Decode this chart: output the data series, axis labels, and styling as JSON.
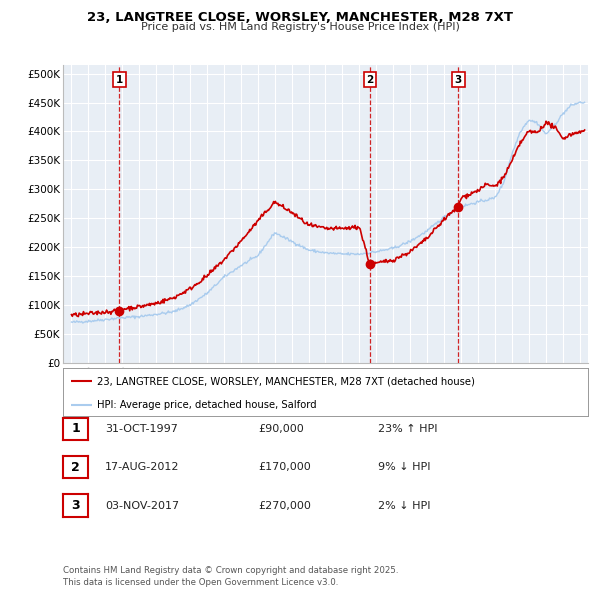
{
  "title1": "23, LANGTREE CLOSE, WORSLEY, MANCHESTER, M28 7XT",
  "title2": "Price paid vs. HM Land Registry's House Price Index (HPI)",
  "ylabel_ticks": [
    "£0",
    "£50K",
    "£100K",
    "£150K",
    "£200K",
    "£250K",
    "£300K",
    "£350K",
    "£400K",
    "£450K",
    "£500K"
  ],
  "ytick_vals": [
    0,
    50000,
    100000,
    150000,
    200000,
    250000,
    300000,
    350000,
    400000,
    450000,
    500000
  ],
  "xlim": [
    1994.5,
    2025.5
  ],
  "ylim": [
    0,
    515000
  ],
  "sale_dates": [
    1997.83,
    2012.62,
    2017.84
  ],
  "sale_prices": [
    90000,
    170000,
    270000
  ],
  "sale_labels": [
    "1",
    "2",
    "3"
  ],
  "sale_info": [
    {
      "num": "1",
      "date": "31-OCT-1997",
      "price": "£90,000",
      "hpi": "23% ↑ HPI"
    },
    {
      "num": "2",
      "date": "17-AUG-2012",
      "price": "£170,000",
      "hpi": "9% ↓ HPI"
    },
    {
      "num": "3",
      "date": "03-NOV-2017",
      "price": "£270,000",
      "hpi": "2% ↓ HPI"
    }
  ],
  "legend_line1": "23, LANGTREE CLOSE, WORSLEY, MANCHESTER, M28 7XT (detached house)",
  "legend_line2": "HPI: Average price, detached house, Salford",
  "footer": "Contains HM Land Registry data © Crown copyright and database right 2025.\nThis data is licensed under the Open Government Licence v3.0.",
  "red_color": "#cc0000",
  "blue_color": "#aaccee",
  "bg_color": "#e8eef5",
  "grid_color": "#ffffff"
}
